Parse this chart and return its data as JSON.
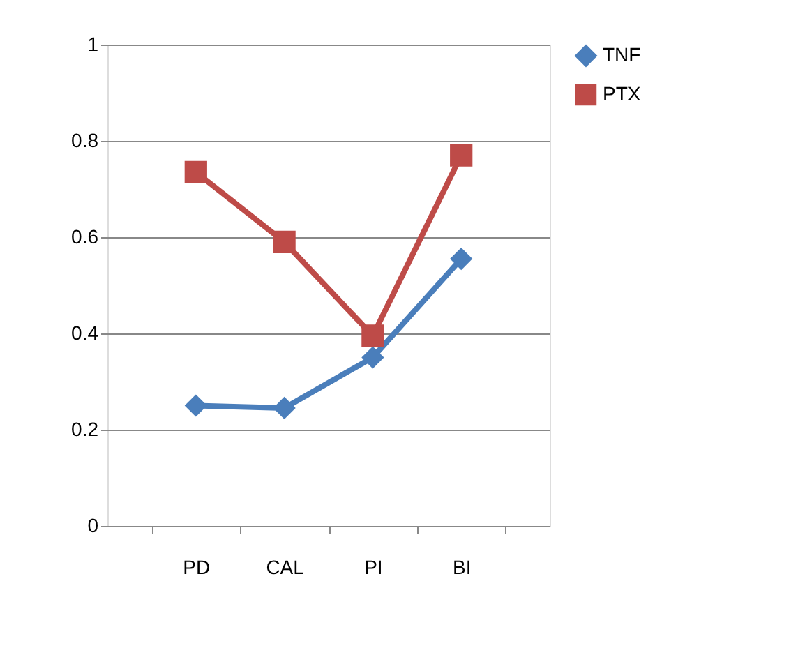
{
  "chart_data": {
    "type": "line",
    "categories": [
      "PD",
      "CAL",
      "PI",
      "BI"
    ],
    "series": [
      {
        "name": "TNF",
        "color": "#4a7ebb",
        "values": [
          0.25,
          0.245,
          0.35,
          0.555
        ],
        "marker": "diamond"
      },
      {
        "name": "PTX",
        "color": "#be4b48",
        "values": [
          0.735,
          0.59,
          0.395,
          0.77
        ],
        "marker": "square"
      }
    ],
    "ylim": [
      0,
      1
    ],
    "yticks": [
      0,
      0.2,
      0.4,
      0.6,
      0.8,
      1
    ],
    "grid": "y",
    "legend": "right",
    "line_style": "solid"
  }
}
